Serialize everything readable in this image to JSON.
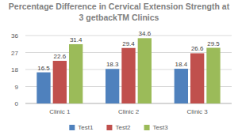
{
  "chart_data": {
    "type": "bar",
    "title": "Percentage Difference in Cervical Extension Strength at 3 getbackTM Clinics",
    "categories": [
      "Clinic 1",
      "Clinic 2",
      "Clinic 3"
    ],
    "series": [
      {
        "name": "Test1",
        "color": "#4f81bd",
        "values": [
          16.5,
          18.3,
          18.4
        ]
      },
      {
        "name": "Test2",
        "color": "#c0504d",
        "values": [
          22.6,
          29.4,
          26.6
        ]
      },
      {
        "name": "Test3",
        "color": "#9bbb59",
        "values": [
          31.4,
          34.6,
          29.5
        ]
      }
    ],
    "ylim": [
      0,
      36
    ],
    "yticks": [
      0,
      9,
      18,
      27,
      36
    ],
    "grid": true,
    "legend": "bottom",
    "data_labels": true
  }
}
